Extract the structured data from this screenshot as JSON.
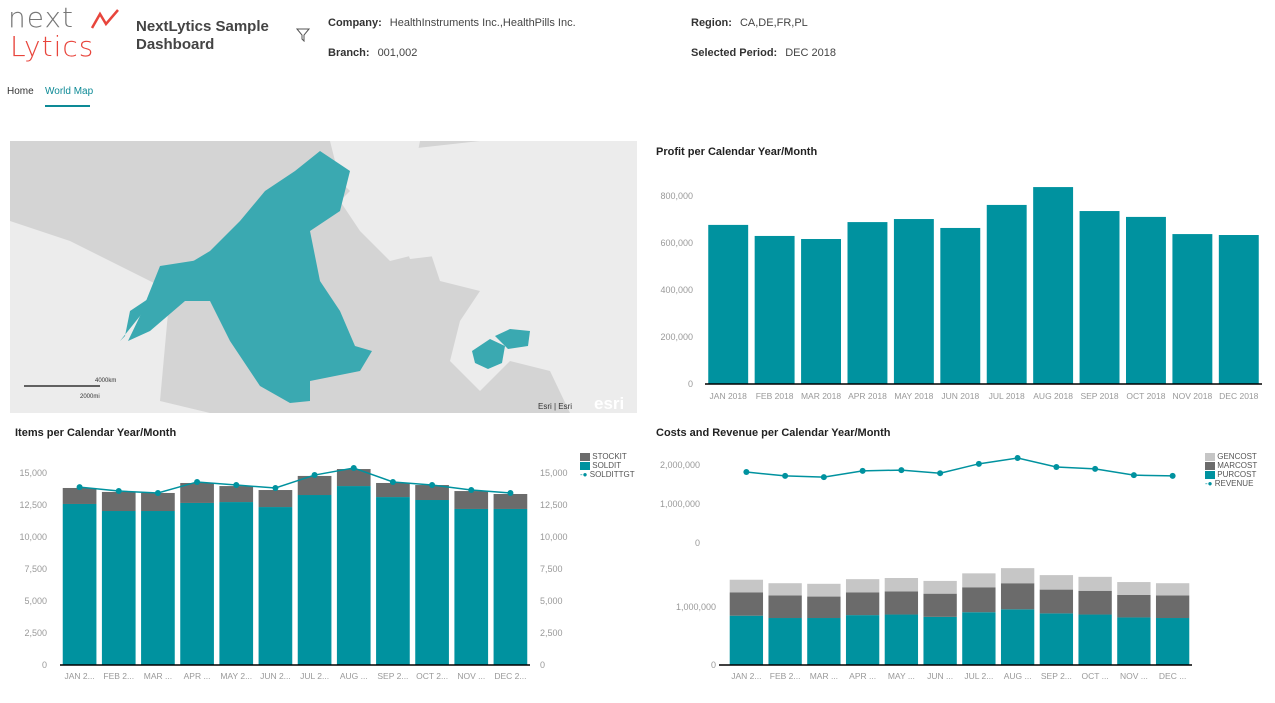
{
  "header": {
    "logo_top": "next",
    "logo_bottom": "Lytics",
    "title": "NextLytics Sample Dashboard",
    "filter_icon": "funnel-icon",
    "company_label": "Company:",
    "company_value": "HealthInstruments Inc.,HealthPills Inc.",
    "branch_label": "Branch:",
    "branch_value": "001,002",
    "region_label": "Region:",
    "region_value": "CA,DE,FR,PL",
    "period_label": "Selected Period:",
    "period_value": "DEC 2018"
  },
  "tabs": [
    {
      "label": "Home",
      "active": false
    },
    {
      "label": "World Map",
      "active": true
    }
  ],
  "map": {
    "scale_km": "4000km",
    "scale_mi": "2000mi",
    "attribution": "Esri | Esri",
    "powered_by": "esri",
    "highlight_color": "#3aa9b1"
  },
  "colors": {
    "teal": "#00929f",
    "dark_gray": "#6b6b6b",
    "light_gray": "#c6c6c6"
  },
  "chart_data": [
    {
      "id": "profit",
      "type": "bar",
      "title": "Profit per Calendar Year/Month",
      "categories": [
        "JAN 2018",
        "FEB 2018",
        "MAR 2018",
        "APR 2018",
        "MAY 2018",
        "JUN 2018",
        "JUL 2018",
        "AUG 2018",
        "SEP 2018",
        "OCT 2018",
        "NOV 2018",
        "DEC 2018"
      ],
      "values": [
        677000,
        630000,
        617000,
        689000,
        702000,
        664000,
        762000,
        838000,
        736000,
        711000,
        638000,
        634000
      ],
      "ylim": [
        0,
        800000
      ],
      "yticks": [
        "0",
        "200,000",
        "400,000",
        "600,000",
        "800,000"
      ],
      "grid": false
    },
    {
      "id": "items",
      "type": "bar",
      "stacked": true,
      "title": "Items per Calendar Year/Month",
      "categories": [
        "JAN 2...",
        "FEB 2...",
        "MAR ...",
        "APR ...",
        "MAY 2...",
        "JUN 2...",
        "JUL 2...",
        "AUG ...",
        "SEP 2...",
        "OCT 2...",
        "NOV ...",
        "DEC 2..."
      ],
      "series": [
        {
          "name": "SOLDIT",
          "type": "bar",
          "values": [
            12580,
            12030,
            12030,
            12660,
            12730,
            12340,
            13280,
            13980,
            13120,
            12890,
            12190,
            12190
          ]
        },
        {
          "name": "STOCKIT",
          "type": "bar",
          "values": [
            1250,
            1490,
            1410,
            1560,
            1250,
            1330,
            1490,
            1330,
            1100,
            1170,
            1400,
            1170
          ]
        },
        {
          "name": "SOLDITTGT",
          "type": "line",
          "values": [
            13900,
            13590,
            13440,
            14300,
            14060,
            13830,
            14840,
            15390,
            14300,
            14060,
            13670,
            13440
          ]
        }
      ],
      "ylim": [
        0,
        15000
      ],
      "yticks": [
        "0",
        "2,500",
        "5,000",
        "7,500",
        "10,000",
        "12,500",
        "15,000"
      ],
      "legend": "top-right"
    },
    {
      "id": "costs",
      "type": "bar",
      "stacked": true,
      "title": "Costs and Revenue per Calendar Year/Month",
      "categories": [
        "JAN 2...",
        "FEB 2...",
        "MAR ...",
        "APR ...",
        "MAY ...",
        "JUN ...",
        "JUL 2...",
        "AUG ...",
        "SEP 2...",
        "OCT ...",
        "NOV ...",
        "DEC ..."
      ],
      "series": [
        {
          "name": "PURCOST",
          "type": "bar",
          "values": [
            850000,
            810000,
            810000,
            860000,
            870000,
            830000,
            910000,
            960000,
            890000,
            870000,
            820000,
            810000
          ]
        },
        {
          "name": "MARCOST",
          "type": "bar",
          "values": [
            400000,
            390000,
            370000,
            390000,
            400000,
            400000,
            430000,
            450000,
            410000,
            410000,
            390000,
            390000
          ]
        },
        {
          "name": "GENCOST",
          "type": "bar",
          "values": [
            220000,
            210000,
            220000,
            230000,
            230000,
            220000,
            240000,
            260000,
            250000,
            240000,
            220000,
            210000
          ]
        },
        {
          "name": "REVENUE",
          "type": "line",
          "values": [
            1820000,
            1720000,
            1690000,
            1850000,
            1870000,
            1790000,
            2030000,
            2180000,
            1950000,
            1900000,
            1740000,
            1720000
          ]
        }
      ],
      "line_yticks": [
        "0",
        "1,000,000",
        "2,000,000"
      ],
      "bar_yticks": [
        "0",
        "1,000,000"
      ],
      "legend": "top-right"
    }
  ]
}
